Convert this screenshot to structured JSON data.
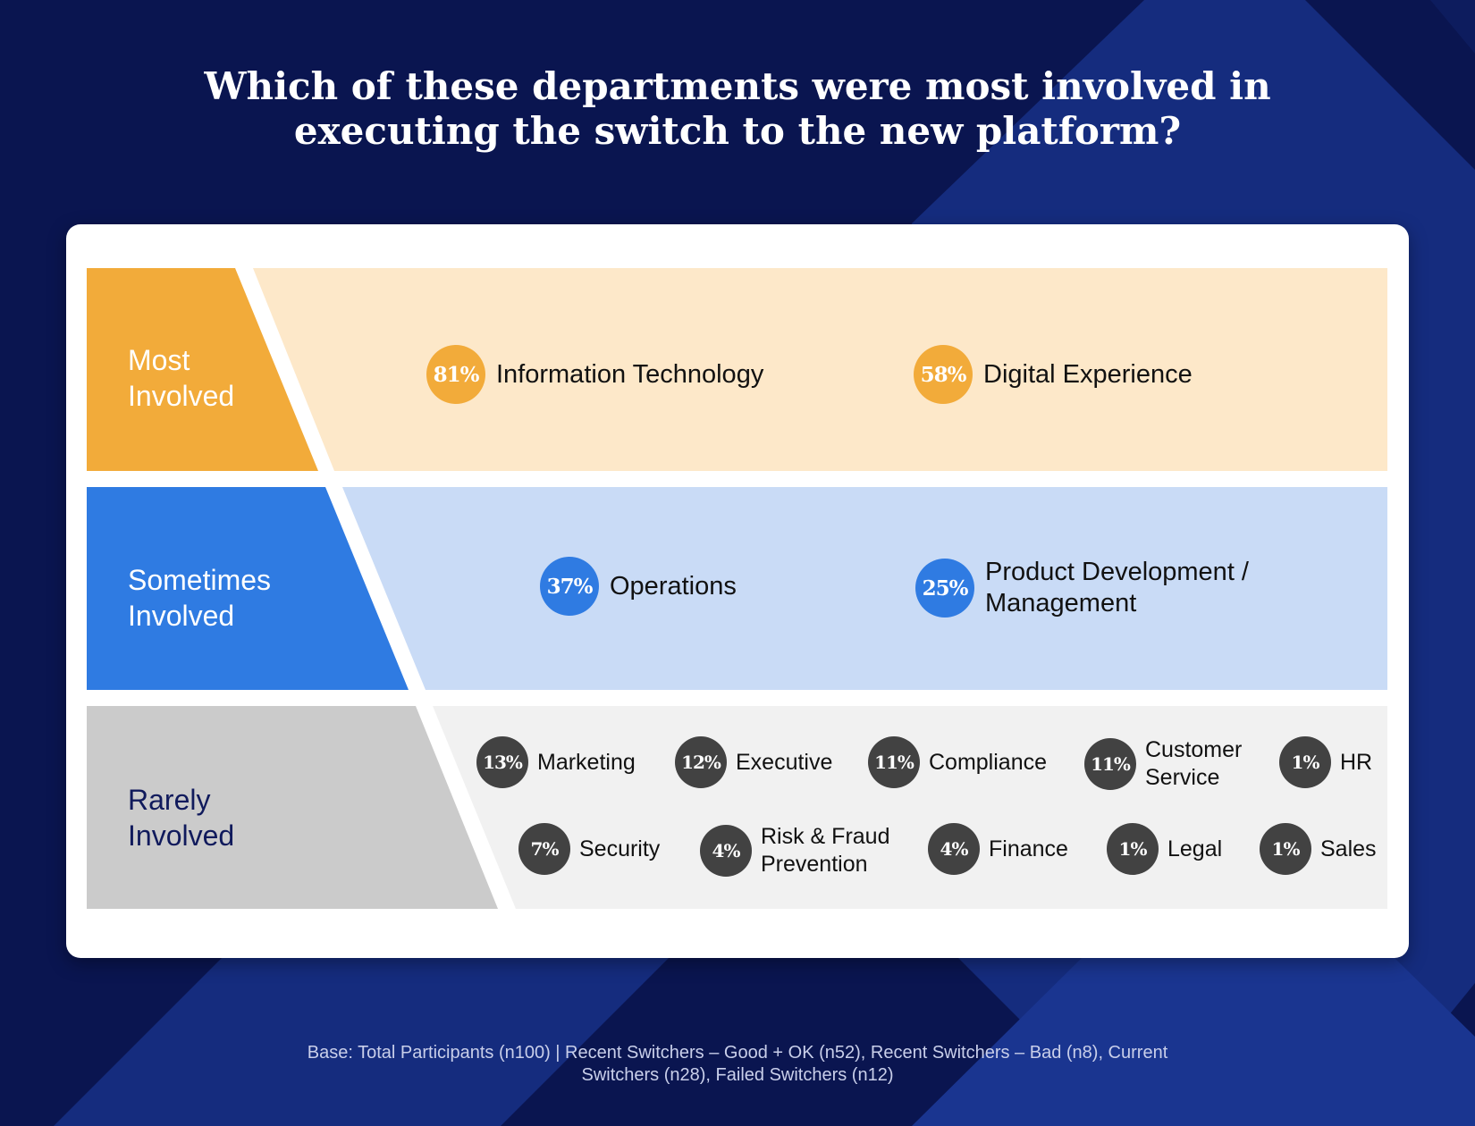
{
  "title": {
    "line1": "Which of these departments were most involved in",
    "line2": "executing the switch to the new platform?"
  },
  "colors": {
    "background": "#0a1550",
    "background_stripe": "#152c7e",
    "most": "#f2ab3a",
    "most_band": "#fde8c9",
    "sometimes": "#2f7be2",
    "sometimes_band": "#c9dbf6",
    "rarely": "#cbcbcb",
    "rarely_band": "#f1f1f1",
    "rarely_badge": "#424242"
  },
  "tiers": [
    {
      "label_line1": "Most",
      "label_line2": "Involved",
      "items": [
        {
          "pct": "81%",
          "name_line1": "Information Technology",
          "name_line2": ""
        },
        {
          "pct": "58%",
          "name_line1": "Digital Experience",
          "name_line2": ""
        }
      ]
    },
    {
      "label_line1": "Sometimes",
      "label_line2": "Involved",
      "items": [
        {
          "pct": "37%",
          "name_line1": "Operations",
          "name_line2": ""
        },
        {
          "pct": "25%",
          "name_line1": "Product Development /",
          "name_line2": "Management"
        }
      ]
    },
    {
      "label_line1": "Rarely",
      "label_line2": "Involved",
      "items": [
        {
          "pct": "13%",
          "name_line1": "Marketing",
          "name_line2": ""
        },
        {
          "pct": "12%",
          "name_line1": "Executive",
          "name_line2": ""
        },
        {
          "pct": "11%",
          "name_line1": "Compliance",
          "name_line2": ""
        },
        {
          "pct": "11%",
          "name_line1": "Customer",
          "name_line2": "Service"
        },
        {
          "pct": "1%",
          "name_line1": "HR",
          "name_line2": ""
        },
        {
          "pct": "7%",
          "name_line1": "Security",
          "name_line2": ""
        },
        {
          "pct": "4%",
          "name_line1": "Risk & Fraud",
          "name_line2": "Prevention"
        },
        {
          "pct": "4%",
          "name_line1": "Finance",
          "name_line2": ""
        },
        {
          "pct": "1%",
          "name_line1": "Legal",
          "name_line2": ""
        },
        {
          "pct": "1%",
          "name_line1": "Sales",
          "name_line2": ""
        }
      ]
    }
  ],
  "base_note": {
    "line1": "Base: Total Participants (n100) | Recent Switchers – Good + OK (n52), Recent Switchers – Bad (n8), Current",
    "line2": "Switchers (n28), Failed Switchers (n12)"
  }
}
